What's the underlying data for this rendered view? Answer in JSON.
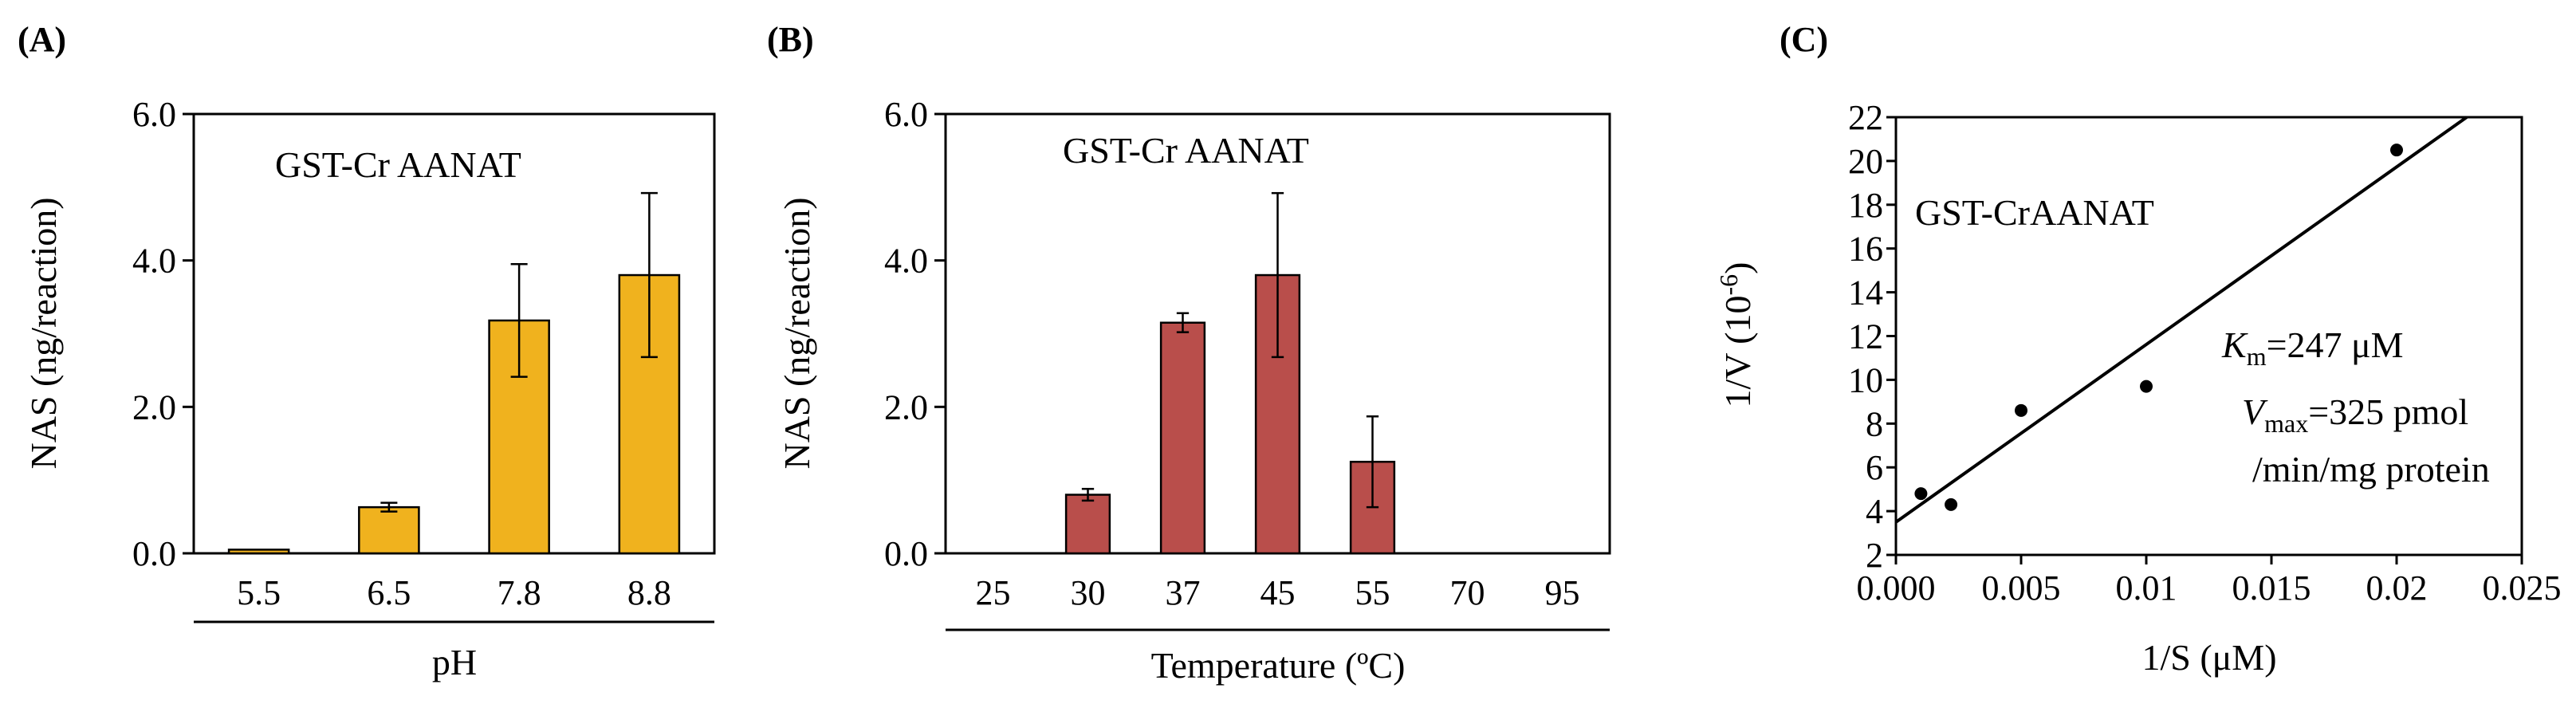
{
  "chart_data": [
    {
      "panel": "(A)",
      "type": "bar",
      "title": "GST-Cr AANAT",
      "xlabel": "pH",
      "ylabel": "NAS (ng/reaction)",
      "categories": [
        "5.5",
        "6.5",
        "7.8",
        "8.8"
      ],
      "values": [
        0.05,
        0.63,
        3.18,
        3.8
      ],
      "errors": [
        0.0,
        0.06,
        0.77,
        1.12
      ],
      "yticks": [
        "0.0",
        "2.0",
        "4.0",
        "6.0"
      ],
      "ylim": [
        0,
        6
      ],
      "color": "#F0B21E"
    },
    {
      "panel": "(B)",
      "type": "bar",
      "title": "GST-Cr AANAT",
      "xlabel": "Temperature (ºC)",
      "ylabel": "NAS (ng/reaction)",
      "categories": [
        "25",
        "30",
        "37",
        "45",
        "55",
        "70",
        "95"
      ],
      "values": [
        0,
        0.8,
        3.15,
        3.8,
        1.25,
        0,
        0
      ],
      "errors": [
        0,
        0.08,
        0.13,
        1.12,
        0.62,
        0,
        0
      ],
      "yticks": [
        "0.0",
        "2.0",
        "4.0",
        "6.0"
      ],
      "ylim": [
        0,
        6
      ],
      "color": "#B94E4B"
    },
    {
      "panel": "(C)",
      "type": "scatter",
      "title": "GST-CrAANAT",
      "xlabel": "1/S (μM)",
      "ylabel": "1/V (10",
      "ylabel_sup": "-6",
      "ylabel_end": ")",
      "x": [
        0.001,
        0.0022,
        0.005,
        0.01,
        0.02
      ],
      "y": [
        4.8,
        4.3,
        8.6,
        9.7,
        20.5
      ],
      "fit_line": {
        "x": [
          0,
          0.0228
        ],
        "y": [
          3.5,
          22
        ]
      },
      "xlim": [
        0,
        0.025
      ],
      "ylim": [
        2,
        22
      ],
      "xticks": [
        "0.000",
        "0.005",
        "0.01",
        "0.015",
        "0.02",
        "0.025"
      ],
      "yticks": [
        "2",
        "4",
        "6",
        "8",
        "10",
        "12",
        "14",
        "16",
        "18",
        "20",
        "22"
      ],
      "km_label": "K",
      "km_sub": "m",
      "km_value": "=247 μM",
      "vmax_label": "V",
      "vmax_sub": "max",
      "vmax_value": "=325 pmol",
      "vmax_units": "/min/mg protein"
    }
  ]
}
